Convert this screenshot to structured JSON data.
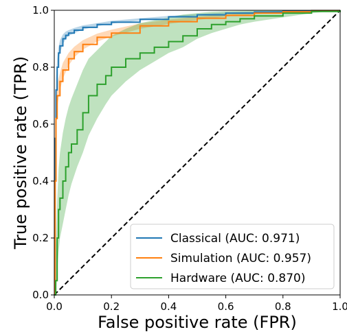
{
  "chart_data": {
    "type": "line",
    "xlabel": "False positive rate (FPR)",
    "ylabel": "True positive rate (TPR)",
    "xlim": [
      0,
      1
    ],
    "ylim": [
      0,
      1
    ],
    "xticks": [
      "0.0",
      "0.2",
      "0.4",
      "0.6",
      "0.8",
      "1.0"
    ],
    "yticks": [
      "0.0",
      "0.2",
      "0.4",
      "0.6",
      "0.8",
      "1.0"
    ],
    "grid": false,
    "legend_position": "lower-right",
    "reference_line": {
      "style": "dashed",
      "color": "#000000",
      "x": [
        0,
        1
      ],
      "y": [
        0,
        1
      ]
    },
    "series": [
      {
        "name": "Classical (AUC: 0.971)",
        "color": "#1f77b4",
        "x": [
          0,
          0.003,
          0.006,
          0.01,
          0.015,
          0.02,
          0.03,
          0.04,
          0.05,
          0.07,
          0.1,
          0.15,
          0.2,
          0.3,
          0.4,
          0.5,
          0.6,
          0.7,
          0.8,
          0.9,
          1.0
        ],
        "y": [
          0,
          0.55,
          0.72,
          0.8,
          0.85,
          0.875,
          0.9,
          0.912,
          0.92,
          0.93,
          0.94,
          0.95,
          0.958,
          0.968,
          0.977,
          0.984,
          0.99,
          0.994,
          0.997,
          0.999,
          1.0
        ],
        "band": {
          "lower": [
            0,
            0.5,
            0.68,
            0.77,
            0.82,
            0.85,
            0.88,
            0.9,
            0.91,
            0.92,
            0.932,
            0.944,
            0.953,
            0.964,
            0.974,
            0.982,
            0.988,
            0.993,
            0.996,
            0.998,
            1.0
          ],
          "upper": [
            0,
            0.6,
            0.76,
            0.83,
            0.87,
            0.895,
            0.915,
            0.925,
            0.93,
            0.938,
            0.947,
            0.955,
            0.963,
            0.972,
            0.98,
            0.986,
            0.992,
            0.995,
            0.998,
            1.0,
            1.0
          ]
        }
      },
      {
        "name": "Simulation (AUC: 0.957)",
        "color": "#ff7f0e",
        "x": [
          0,
          0.003,
          0.006,
          0.01,
          0.02,
          0.03,
          0.05,
          0.07,
          0.1,
          0.15,
          0.2,
          0.3,
          0.4,
          0.5,
          0.6,
          0.7,
          0.8,
          0.9,
          1.0
        ],
        "y": [
          0,
          0.4,
          0.62,
          0.7,
          0.75,
          0.79,
          0.83,
          0.855,
          0.88,
          0.905,
          0.92,
          0.945,
          0.96,
          0.972,
          0.982,
          0.99,
          0.995,
          0.999,
          1.0
        ],
        "band": {
          "lower": [
            0,
            0.33,
            0.56,
            0.66,
            0.72,
            0.76,
            0.805,
            0.835,
            0.862,
            0.89,
            0.908,
            0.935,
            0.952,
            0.966,
            0.978,
            0.986,
            0.993,
            0.998,
            1.0
          ],
          "upper": [
            0,
            0.46,
            0.67,
            0.74,
            0.78,
            0.815,
            0.85,
            0.872,
            0.895,
            0.918,
            0.932,
            0.954,
            0.967,
            0.978,
            0.986,
            0.993,
            0.997,
            1.0,
            1.0
          ]
        }
      },
      {
        "name": "Hardware (AUC: 0.870)",
        "color": "#2ca02c",
        "x": [
          0,
          0.005,
          0.01,
          0.015,
          0.02,
          0.03,
          0.04,
          0.05,
          0.06,
          0.08,
          0.1,
          0.12,
          0.15,
          0.18,
          0.2,
          0.25,
          0.3,
          0.35,
          0.4,
          0.45,
          0.5,
          0.55,
          0.6,
          0.65,
          0.7,
          0.8,
          0.9,
          1.0
        ],
        "y": [
          0,
          0.05,
          0.2,
          0.3,
          0.34,
          0.4,
          0.45,
          0.5,
          0.53,
          0.58,
          0.64,
          0.7,
          0.74,
          0.77,
          0.8,
          0.83,
          0.85,
          0.87,
          0.89,
          0.91,
          0.935,
          0.95,
          0.96,
          0.97,
          0.98,
          0.99,
          0.996,
          1.0
        ],
        "band": {
          "lower": [
            0,
            0.0,
            0.08,
            0.15,
            0.2,
            0.25,
            0.3,
            0.35,
            0.39,
            0.45,
            0.5,
            0.56,
            0.62,
            0.67,
            0.7,
            0.75,
            0.79,
            0.82,
            0.85,
            0.87,
            0.9,
            0.92,
            0.935,
            0.95,
            0.96,
            0.975,
            0.99,
            1.0
          ],
          "upper": [
            0,
            0.14,
            0.33,
            0.44,
            0.5,
            0.57,
            0.62,
            0.66,
            0.69,
            0.74,
            0.79,
            0.83,
            0.86,
            0.89,
            0.91,
            0.935,
            0.955,
            0.965,
            0.975,
            0.985,
            0.99,
            0.995,
            0.997,
            0.998,
            0.999,
            1.0,
            1.0,
            1.0
          ]
        }
      }
    ]
  }
}
